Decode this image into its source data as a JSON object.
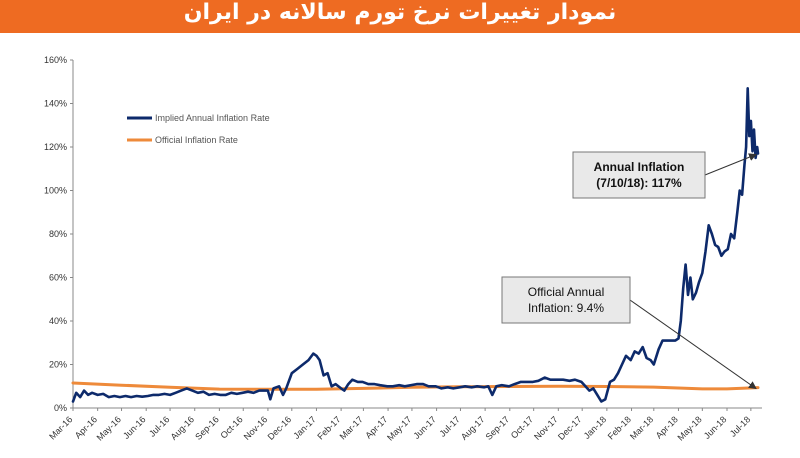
{
  "header": {
    "title": "نمودار تغییرات نرخ تورم سالانه در ایران"
  },
  "chart_data": {
    "type": "line",
    "y_ticks": [
      "0%",
      "20%",
      "40%",
      "60%",
      "80%",
      "100%",
      "120%",
      "140%",
      "160%"
    ],
    "ylim": [
      0,
      160
    ],
    "x_ticks": [
      "Mar-16",
      "Apr-16",
      "May-16",
      "Jun-16",
      "Jul-16",
      "Aug-16",
      "Sep-16",
      "Oct-16",
      "Nov-16",
      "Dec-16",
      "Jan-17",
      "Feb-17",
      "Mar-17",
      "Apr-17",
      "May-17",
      "Jun-17",
      "Jul-17",
      "Aug-17",
      "Sep-17",
      "Oct-17",
      "Nov-17",
      "Dec-17",
      "Jan-18",
      "Feb-18",
      "Mar-18",
      "Apr-18",
      "May-18",
      "Jun-18",
      "Jul-18"
    ],
    "legend": {
      "placement": "top-left"
    },
    "grid": false,
    "series": [
      {
        "name": "Implied Annual Inflation Rate",
        "color": "#0d2a6b",
        "points": [
          [
            "2016-03-01",
            3
          ],
          [
            "2016-03-05",
            7
          ],
          [
            "2016-03-10",
            5
          ],
          [
            "2016-03-15",
            8
          ],
          [
            "2016-03-20",
            6
          ],
          [
            "2016-03-25",
            7
          ],
          [
            "2016-04-01",
            6
          ],
          [
            "2016-04-08",
            6.5
          ],
          [
            "2016-04-15",
            5
          ],
          [
            "2016-04-22",
            5.5
          ],
          [
            "2016-04-29",
            5
          ],
          [
            "2016-05-06",
            5.5
          ],
          [
            "2016-05-13",
            5
          ],
          [
            "2016-05-20",
            5.5
          ],
          [
            "2016-05-27",
            5.2
          ],
          [
            "2016-06-03",
            5.5
          ],
          [
            "2016-06-10",
            6
          ],
          [
            "2016-06-17",
            6
          ],
          [
            "2016-06-24",
            6.5
          ],
          [
            "2016-07-01",
            6
          ],
          [
            "2016-07-08",
            7
          ],
          [
            "2016-07-15",
            8
          ],
          [
            "2016-07-22",
            9
          ],
          [
            "2016-07-29",
            8
          ],
          [
            "2016-08-05",
            7
          ],
          [
            "2016-08-12",
            7.5
          ],
          [
            "2016-08-19",
            6
          ],
          [
            "2016-08-26",
            6.5
          ],
          [
            "2016-09-02",
            6
          ],
          [
            "2016-09-09",
            6
          ],
          [
            "2016-09-16",
            7
          ],
          [
            "2016-09-23",
            6.5
          ],
          [
            "2016-09-30",
            7
          ],
          [
            "2016-10-07",
            7.5
          ],
          [
            "2016-10-14",
            7
          ],
          [
            "2016-10-21",
            8
          ],
          [
            "2016-10-28",
            8
          ],
          [
            "2016-11-01",
            8
          ],
          [
            "2016-11-04",
            4
          ],
          [
            "2016-11-08",
            9
          ],
          [
            "2016-11-15",
            10
          ],
          [
            "2016-11-20",
            6
          ],
          [
            "2016-11-24",
            9
          ],
          [
            "2016-12-01",
            16
          ],
          [
            "2016-12-08",
            18
          ],
          [
            "2016-12-15",
            20
          ],
          [
            "2016-12-22",
            22
          ],
          [
            "2016-12-28",
            25
          ],
          [
            "2017-01-01",
            24
          ],
          [
            "2017-01-05",
            22
          ],
          [
            "2017-01-10",
            15
          ],
          [
            "2017-01-15",
            16
          ],
          [
            "2017-01-20",
            10
          ],
          [
            "2017-01-25",
            11
          ],
          [
            "2017-02-01",
            9
          ],
          [
            "2017-02-05",
            8
          ],
          [
            "2017-02-10",
            11
          ],
          [
            "2017-02-15",
            13
          ],
          [
            "2017-02-22",
            12
          ],
          [
            "2017-02-28",
            12
          ],
          [
            "2017-03-07",
            11
          ],
          [
            "2017-03-15",
            11
          ],
          [
            "2017-03-22",
            10.5
          ],
          [
            "2017-03-31",
            10
          ],
          [
            "2017-04-07",
            10
          ],
          [
            "2017-04-15",
            10.5
          ],
          [
            "2017-04-22",
            10
          ],
          [
            "2017-04-30",
            10.5
          ],
          [
            "2017-05-07",
            11
          ],
          [
            "2017-05-15",
            11
          ],
          [
            "2017-05-22",
            10
          ],
          [
            "2017-05-31",
            10
          ],
          [
            "2017-06-07",
            9
          ],
          [
            "2017-06-15",
            9.5
          ],
          [
            "2017-06-22",
            9
          ],
          [
            "2017-06-30",
            9.5
          ],
          [
            "2017-07-07",
            10
          ],
          [
            "2017-07-15",
            9.5
          ],
          [
            "2017-07-22",
            10
          ],
          [
            "2017-07-31",
            9.5
          ],
          [
            "2017-08-05",
            10
          ],
          [
            "2017-08-10",
            6
          ],
          [
            "2017-08-15",
            10
          ],
          [
            "2017-08-22",
            10.5
          ],
          [
            "2017-08-31",
            10
          ],
          [
            "2017-09-07",
            11
          ],
          [
            "2017-09-15",
            12
          ],
          [
            "2017-09-22",
            12
          ],
          [
            "2017-09-30",
            12
          ],
          [
            "2017-10-07",
            12.5
          ],
          [
            "2017-10-15",
            14
          ],
          [
            "2017-10-22",
            13
          ],
          [
            "2017-10-31",
            13
          ],
          [
            "2017-11-07",
            13
          ],
          [
            "2017-11-15",
            12.5
          ],
          [
            "2017-11-22",
            13
          ],
          [
            "2017-11-30",
            12
          ],
          [
            "2017-12-05",
            10
          ],
          [
            "2017-12-10",
            8
          ],
          [
            "2017-12-15",
            9
          ],
          [
            "2017-12-20",
            6
          ],
          [
            "2017-12-25",
            3
          ],
          [
            "2017-12-30",
            4
          ],
          [
            "2018-01-05",
            12
          ],
          [
            "2018-01-10",
            13
          ],
          [
            "2018-01-15",
            16
          ],
          [
            "2018-01-20",
            20
          ],
          [
            "2018-01-25",
            24
          ],
          [
            "2018-01-31",
            22
          ],
          [
            "2018-02-05",
            26
          ],
          [
            "2018-02-10",
            25
          ],
          [
            "2018-02-15",
            28
          ],
          [
            "2018-02-20",
            23
          ],
          [
            "2018-02-25",
            22
          ],
          [
            "2018-03-01",
            20
          ],
          [
            "2018-03-07",
            27
          ],
          [
            "2018-03-12",
            31
          ],
          [
            "2018-03-20",
            31
          ],
          [
            "2018-03-28",
            31
          ],
          [
            "2018-04-01",
            32
          ],
          [
            "2018-04-04",
            40
          ],
          [
            "2018-04-07",
            55
          ],
          [
            "2018-04-10",
            66
          ],
          [
            "2018-04-13",
            52
          ],
          [
            "2018-04-16",
            60
          ],
          [
            "2018-04-19",
            50
          ],
          [
            "2018-04-23",
            53
          ],
          [
            "2018-04-27",
            58
          ],
          [
            "2018-05-01",
            62
          ],
          [
            "2018-05-05",
            72
          ],
          [
            "2018-05-09",
            84
          ],
          [
            "2018-05-13",
            80
          ],
          [
            "2018-05-17",
            75
          ],
          [
            "2018-05-21",
            74
          ],
          [
            "2018-05-25",
            70
          ],
          [
            "2018-05-29",
            72
          ],
          [
            "2018-06-02",
            73
          ],
          [
            "2018-06-06",
            80
          ],
          [
            "2018-06-10",
            78
          ],
          [
            "2018-06-14",
            90
          ],
          [
            "2018-06-17",
            100
          ],
          [
            "2018-06-20",
            98
          ],
          [
            "2018-06-23",
            112
          ],
          [
            "2018-06-25",
            120
          ],
          [
            "2018-06-27",
            147
          ],
          [
            "2018-06-29",
            125
          ],
          [
            "2018-07-01",
            132
          ],
          [
            "2018-07-03",
            118
          ],
          [
            "2018-07-05",
            128
          ],
          [
            "2018-07-07",
            115
          ],
          [
            "2018-07-09",
            120
          ],
          [
            "2018-07-10",
            117
          ]
        ]
      },
      {
        "name": "Official Inflation Rate",
        "color": "#ee8a3a",
        "points": [
          [
            "2016-03-01",
            11.5
          ],
          [
            "2016-05-01",
            10.5
          ],
          [
            "2016-07-01",
            9.5
          ],
          [
            "2016-09-01",
            8.7
          ],
          [
            "2016-11-01",
            8.6
          ],
          [
            "2017-01-01",
            8.6
          ],
          [
            "2017-03-01",
            9.0
          ],
          [
            "2017-05-01",
            9.5
          ],
          [
            "2017-07-01",
            9.8
          ],
          [
            "2017-09-01",
            9.9
          ],
          [
            "2017-11-01",
            10.0
          ],
          [
            "2018-01-01",
            9.9
          ],
          [
            "2018-03-01",
            9.6
          ],
          [
            "2018-05-01",
            8.8
          ],
          [
            "2018-06-01",
            8.8
          ],
          [
            "2018-07-10",
            9.4
          ]
        ]
      }
    ],
    "annotations": [
      {
        "lines": [
          "Annual Inflation",
          "(7/10/18): 117%"
        ],
        "bold": true,
        "target": [
          "2018-07-10",
          117
        ]
      },
      {
        "lines": [
          "Official Annual",
          "Inflation: 9.4%"
        ],
        "bold": false,
        "target": [
          "2018-07-10",
          9.4
        ]
      }
    ]
  }
}
